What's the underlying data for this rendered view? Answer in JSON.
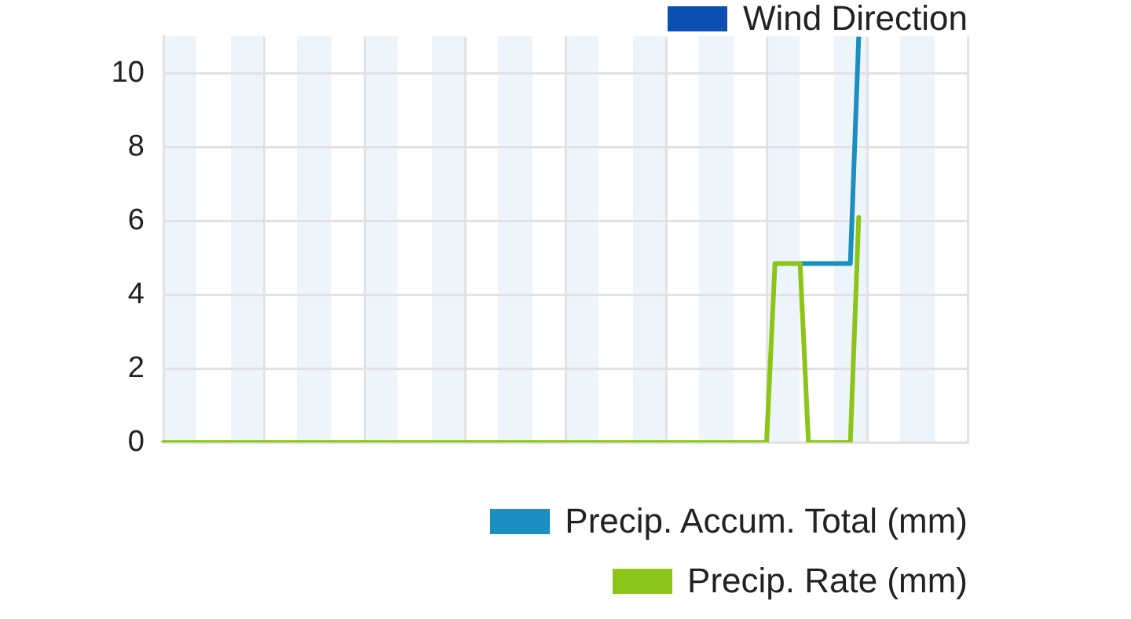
{
  "chart_data": {
    "type": "line",
    "categories": [
      null,
      null,
      null,
      null,
      null,
      null,
      null,
      null,
      null,
      null,
      null,
      null,
      null,
      null,
      null,
      null,
      null,
      null,
      null,
      null,
      null,
      null,
      null,
      null,
      null,
      null,
      null,
      null,
      null,
      null,
      null,
      null,
      null,
      null,
      null,
      null,
      null,
      null,
      null,
      null,
      null,
      null,
      null,
      null,
      null,
      null,
      null,
      null,
      null,
      null,
      null,
      null,
      null,
      null,
      null,
      null,
      null,
      null,
      null,
      null,
      null,
      null,
      null,
      null,
      null,
      null,
      null,
      null,
      null,
      null,
      null,
      null,
      null,
      null,
      null,
      null,
      null,
      null,
      null,
      null,
      null,
      null,
      null,
      null,
      null,
      null,
      null,
      null,
      null,
      null,
      null,
      null,
      null,
      null,
      null,
      null,
      null
    ],
    "ylim": [
      0,
      11
    ],
    "yticks": [
      0,
      2,
      4,
      6,
      8,
      10
    ],
    "grid": true,
    "legend": "bottom right",
    "marker": "none",
    "line_style": "solid",
    "series": [
      {
        "name": "Wind Direction",
        "color": "#0b4fb0",
        "values": [
          null,
          null,
          null,
          null,
          null,
          null,
          null,
          null,
          null,
          null,
          null,
          null,
          null,
          null,
          null,
          null,
          null,
          null,
          null,
          null,
          null,
          null,
          null,
          null,
          null,
          null,
          null,
          null,
          null,
          null,
          null,
          null,
          null,
          null,
          null,
          null,
          null,
          null,
          null,
          null,
          null,
          null,
          null,
          null,
          null,
          null,
          null,
          null,
          null,
          null,
          null,
          null,
          null,
          null,
          null,
          null,
          null,
          null,
          null,
          null,
          null,
          null,
          null,
          null,
          null,
          null,
          null,
          null,
          null,
          null,
          null,
          null,
          null,
          null,
          null,
          null,
          null,
          null,
          null,
          null,
          null,
          null,
          null,
          null,
          null,
          null,
          null,
          null,
          null,
          null,
          null,
          null,
          null,
          null,
          null,
          null,
          null
        ]
      },
      {
        "name": "Precip. Accum. Total (mm)",
        "color": "#1a8fc0",
        "values": [
          null,
          null,
          null,
          null,
          null,
          null,
          null,
          null,
          null,
          null,
          null,
          null,
          null,
          null,
          null,
          null,
          null,
          null,
          null,
          null,
          null,
          null,
          null,
          null,
          null,
          null,
          null,
          null,
          null,
          null,
          null,
          null,
          null,
          null,
          null,
          null,
          null,
          null,
          null,
          null,
          null,
          null,
          null,
          null,
          null,
          null,
          null,
          null,
          null,
          null,
          null,
          null,
          null,
          null,
          null,
          null,
          null,
          null,
          null,
          null,
          null,
          null,
          null,
          null,
          null,
          null,
          null,
          null,
          null,
          null,
          null,
          null,
          null,
          null,
          null,
          null,
          4.85,
          4.85,
          4.85,
          4.85,
          4.85,
          4.85,
          4.85,
          11,
          null,
          null,
          null,
          null,
          null,
          null,
          null,
          null,
          null,
          null,
          null,
          null,
          null
        ]
      },
      {
        "name": "Precip. Rate (mm)",
        "color": "#8cc418",
        "values": [
          0,
          0,
          0,
          0,
          0,
          0,
          0,
          0,
          0,
          0,
          0,
          0,
          0,
          0,
          0,
          0,
          0,
          0,
          0,
          0,
          0,
          0,
          0,
          0,
          0,
          0,
          0,
          0,
          0,
          0,
          0,
          0,
          0,
          0,
          0,
          0,
          0,
          0,
          0,
          0,
          0,
          0,
          0,
          0,
          0,
          0,
          0,
          0,
          0,
          0,
          0,
          0,
          0,
          0,
          0,
          0,
          0,
          0,
          0,
          0,
          0,
          0,
          0,
          0,
          0,
          0,
          0,
          0,
          0,
          0,
          0,
          0,
          0,
          4.85,
          4.85,
          4.85,
          4.85,
          0,
          0,
          0,
          0,
          0,
          0,
          6.1,
          null,
          null,
          null,
          null,
          null,
          null,
          null,
          null,
          null,
          null,
          null,
          null,
          null
        ]
      }
    ]
  }
}
